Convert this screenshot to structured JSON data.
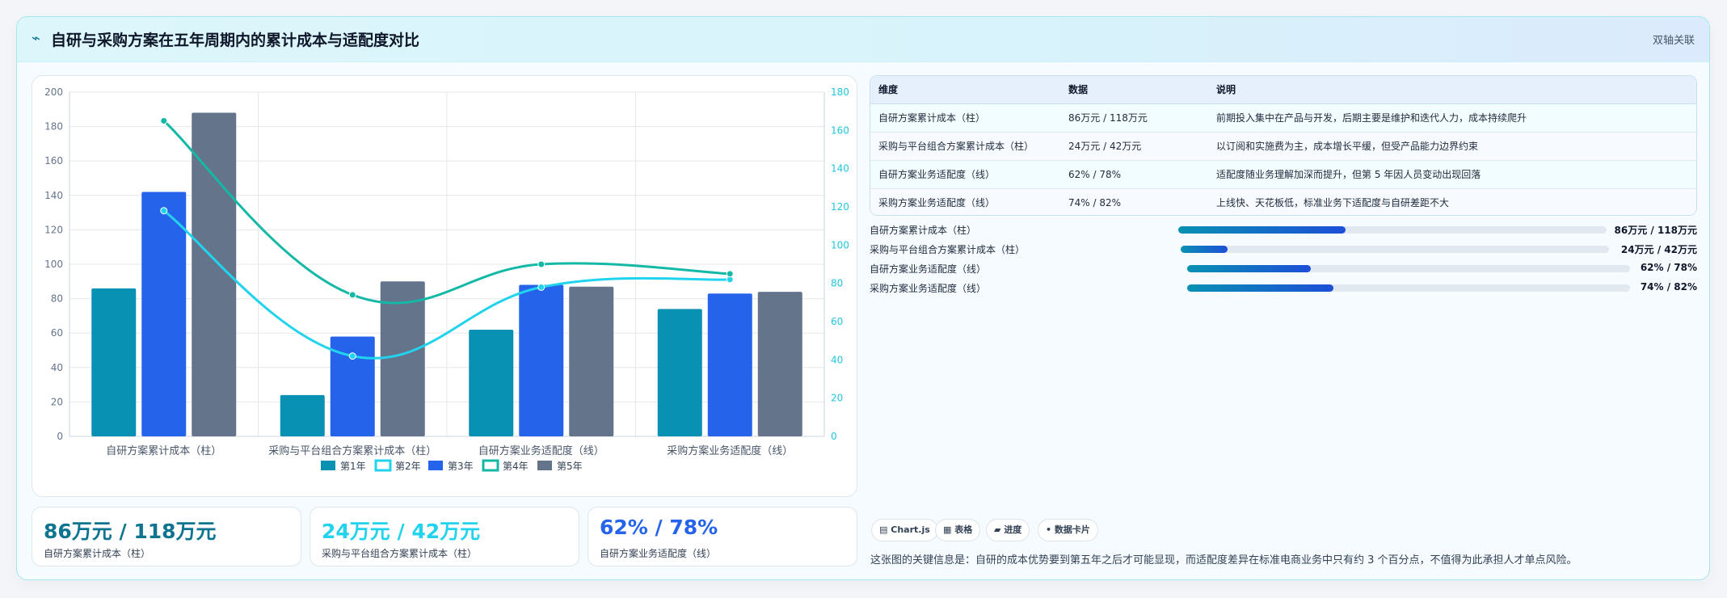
{
  "header": {
    "icon": "chart-line-icon",
    "icon_glyph": "⌁",
    "title": "自研与采购方案在五年周期内的累计成本与适配度对比",
    "badge": "双轴关联"
  },
  "colors": {
    "y1": "#0891b2",
    "y2": "#22d3ee",
    "y3": "#2563eb",
    "y4": "#14b8a6",
    "y5": "#64748b",
    "accent": "#0e7490"
  },
  "chart_data": {
    "type": "bar",
    "categories": [
      "自研方案累计成本（柱）",
      "采购与平台组合方案累计成本（柱）",
      "自研方案业务适配度（线）",
      "采购方案业务适配度（线）"
    ],
    "series": [
      {
        "name": "第1年",
        "kind": "bar",
        "axis": "left",
        "values": [
          86,
          24,
          62,
          74
        ]
      },
      {
        "name": "第3年",
        "kind": "bar",
        "axis": "left",
        "values": [
          142,
          58,
          88,
          83
        ]
      },
      {
        "name": "第5年",
        "kind": "bar",
        "axis": "left",
        "values": [
          188,
          90,
          87,
          84
        ]
      },
      {
        "name": "第2年",
        "kind": "line",
        "axis": "right",
        "values": [
          118,
          42,
          78,
          82
        ]
      },
      {
        "name": "第4年",
        "kind": "line",
        "axis": "right",
        "values": [
          165,
          74,
          90,
          85
        ]
      }
    ],
    "legend": [
      "第1年",
      "第2年",
      "第3年",
      "第4年",
      "第5年"
    ],
    "legend_position": "bottom",
    "ylim_left": [
      0,
      200
    ],
    "yticks_left": [
      0,
      20,
      40,
      60,
      80,
      100,
      120,
      140,
      160,
      180,
      200
    ],
    "ylim_right": [
      0,
      180
    ],
    "yticks_right": [
      0,
      20,
      40,
      60,
      80,
      100,
      120,
      140,
      160,
      180
    ],
    "grid": true
  },
  "stats": [
    {
      "value": "86万元 / 118万元",
      "label": "自研方案累计成本（柱）",
      "color": "#0e7490"
    },
    {
      "value": "24万元 / 42万元",
      "label": "采购与平台组合方案累计成本（柱）",
      "color": "#22d3ee"
    },
    {
      "value": "62% / 78%",
      "label": "自研方案业务适配度（线）",
      "color": "#2563eb"
    }
  ],
  "table": {
    "headers": [
      "维度",
      "数据",
      "说明"
    ],
    "rows": [
      [
        "自研方案累计成本（柱）",
        "86万元 / 118万元",
        "前期投入集中在产品与开发，后期主要是维护和迭代人力，成本持续爬升"
      ],
      [
        "采购与平台组合方案累计成本（柱）",
        "24万元 / 42万元",
        "以订阅和实施费为主，成本增长平缓，但受产品能力边界约束"
      ],
      [
        "自研方案业务适配度（线）",
        "62% / 78%",
        "适配度随业务理解加深而提升，但第 5 年因人员变动出现回落"
      ],
      [
        "采购方案业务适配度（线）",
        "74% / 82%",
        "上线快、天花板低，标准业务下适配度与自研差距不大"
      ]
    ]
  },
  "progress": [
    {
      "label": "自研方案累计成本（柱）",
      "value": "86万元 / 118万元",
      "fraction": 0.39
    },
    {
      "label": "采购与平台组合方案累计成本（柱）",
      "value": "24万元 / 42万元",
      "fraction": 0.11
    },
    {
      "label": "自研方案业务适配度（线）",
      "value": "62% / 78%",
      "fraction": 0.28
    },
    {
      "label": "采购方案业务适配度（线）",
      "value": "74% / 82%",
      "fraction": 0.33
    }
  ],
  "chips": [
    {
      "label": "Chart.js",
      "icon": "chart-icon",
      "glyph": "▤"
    },
    {
      "label": "表格",
      "icon": "table-icon",
      "glyph": "▦"
    },
    {
      "label": "进度",
      "icon": "progress-icon",
      "glyph": "▰"
    },
    {
      "label": "数据卡片",
      "icon": "card-icon",
      "glyph": "•"
    }
  ],
  "note": "这张图的关键信息是：自研的成本优势要到第五年之后才可能显现，而适配度差异在标准电商业务中只有约 3 个百分点，不值得为此承担人才单点风险。"
}
